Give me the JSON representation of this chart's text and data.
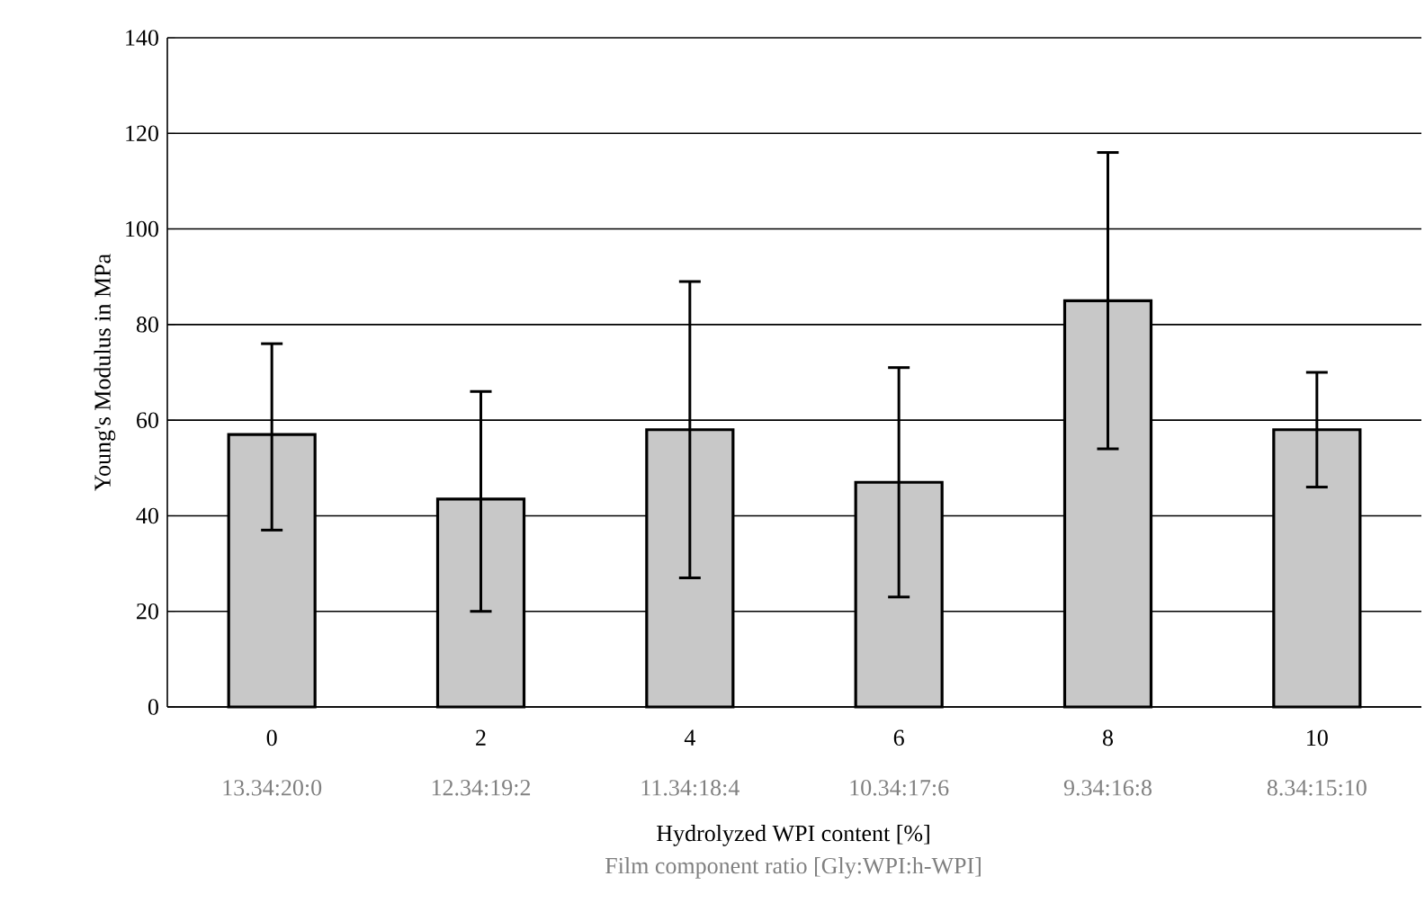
{
  "chart_data": {
    "type": "bar",
    "categories": [
      "0",
      "2",
      "4",
      "6",
      "8",
      "10"
    ],
    "values": [
      57,
      43.5,
      58,
      47,
      85,
      58
    ],
    "errors": [
      [
        37,
        76
      ],
      [
        20,
        66
      ],
      [
        27,
        89
      ],
      [
        23,
        71
      ],
      [
        54,
        116
      ],
      [
        46,
        70
      ]
    ],
    "color": "#c8c8c8",
    "ylim": [
      0,
      140
    ],
    "yticks": [
      0,
      20,
      40,
      60,
      80,
      100,
      120,
      140
    ],
    "grid": "y",
    "xlabel": "Hydrolyzed WPI content [%]",
    "ylabel": "Young's Modulus in MPa",
    "annotations": [
      "13.34:20:0",
      "12.34:19:2",
      "11.34:18:4",
      "10.34:17:6",
      "9.34:16:8",
      "8.34:15:10",
      "Film component ratio [Gly:WPI:h-WPI]"
    ]
  }
}
